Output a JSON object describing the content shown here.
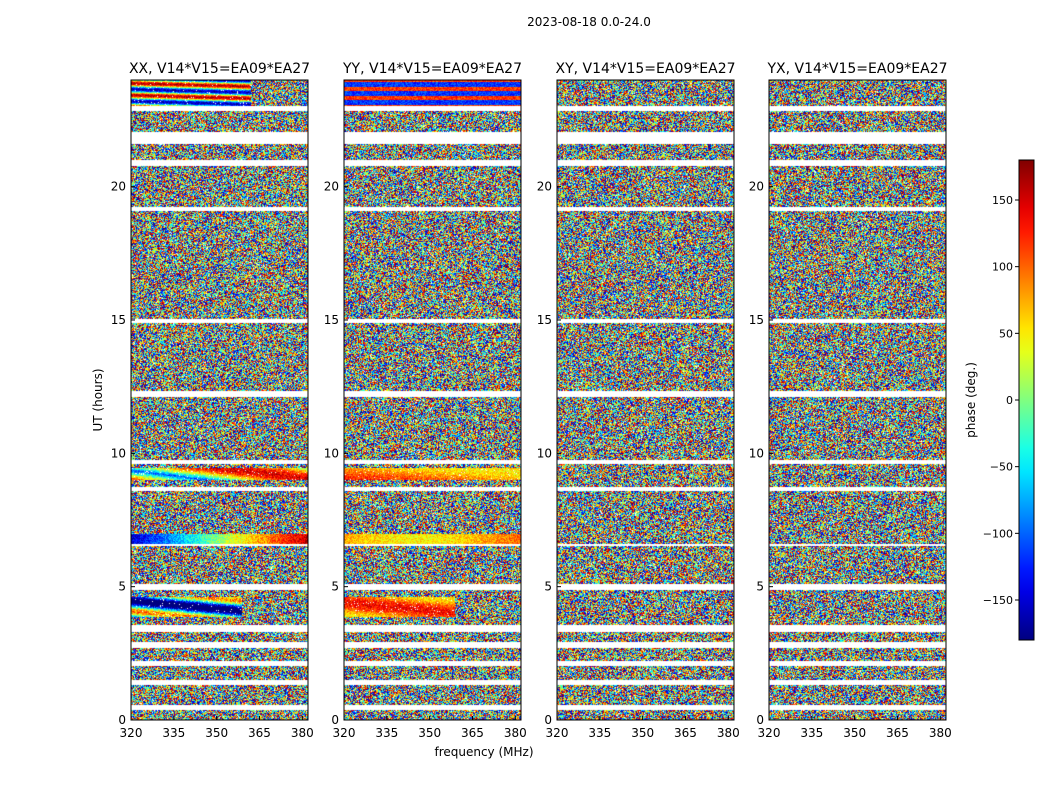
{
  "figure": {
    "title": "2023-08-18 0.0-24.0"
  },
  "chart_data": {
    "type": "heatmap",
    "title": "2023-08-18 0.0-24.0",
    "xlabel": "frequency (MHz)",
    "ylabel": "UT (hours)",
    "xlim": [
      320,
      382
    ],
    "ylim": [
      0,
      24
    ],
    "xticks": [
      320,
      335,
      350,
      365,
      380
    ],
    "yticks": [
      0,
      5,
      10,
      15,
      20
    ],
    "panels": [
      {
        "title": "XX, V14*V15=EA09*EA27",
        "pol": "XX",
        "show_xlabel": false,
        "show_ylabel": true
      },
      {
        "title": "YY, V14*V15=EA09*EA27",
        "pol": "YY",
        "show_xlabel": true,
        "show_ylabel": false
      },
      {
        "title": "XY, V14*V15=EA09*EA27",
        "pol": "XY",
        "show_xlabel": false,
        "show_ylabel": false
      },
      {
        "title": "YX, V14*V15=EA09*EA27",
        "pol": "YX",
        "show_xlabel": false,
        "show_ylabel": false
      }
    ],
    "colorbar": {
      "label": "phase (deg.)",
      "range": [
        -180,
        180
      ],
      "ticks": [
        -150,
        -100,
        -50,
        0,
        50,
        100,
        150
      ],
      "colormap": "jet"
    },
    "flagged_time_bands_hours": [
      [
        0.35,
        0.55
      ],
      [
        1.3,
        1.5
      ],
      [
        2.0,
        2.2
      ],
      [
        2.7,
        2.9
      ],
      [
        3.3,
        3.55
      ],
      [
        4.85,
        5.1
      ],
      [
        6.5,
        6.6
      ],
      [
        8.6,
        8.75
      ],
      [
        9.6,
        9.75
      ],
      [
        12.1,
        12.35
      ],
      [
        14.9,
        15.05
      ],
      [
        19.1,
        19.25
      ],
      [
        20.8,
        21.0
      ],
      [
        21.6,
        22.05
      ],
      [
        22.85,
        23.05
      ]
    ],
    "coherent_segments": [
      {
        "pol": "XX",
        "ut_range": [
          22.9,
          24.0
        ],
        "freq_range": [
          320,
          362
        ],
        "phase_pattern": "red-to-cyan-banded"
      },
      {
        "pol": "XX",
        "ut_range": [
          6.55,
          6.95
        ],
        "freq_range": [
          320,
          382
        ],
        "phase_pattern": "blue-to-red gradient"
      },
      {
        "pol": "XX",
        "ut_range": [
          3.85,
          4.6
        ],
        "freq_range": [
          320,
          359
        ],
        "phase_pattern": "mixed blue/green"
      },
      {
        "pol": "XX",
        "ut_range": [
          9.0,
          9.45
        ],
        "freq_range": [
          320,
          382
        ],
        "phase_pattern": "mixed blue/red"
      },
      {
        "pol": "YY",
        "ut_range": [
          22.9,
          24.0
        ],
        "freq_range": [
          320,
          382
        ],
        "phase_pattern": "red/blue banded"
      },
      {
        "pol": "YY",
        "ut_range": [
          6.5,
          6.95
        ],
        "freq_range": [
          320,
          382
        ],
        "phase_pattern": "orange/red"
      },
      {
        "pol": "YY",
        "ut_range": [
          3.85,
          4.6
        ],
        "freq_range": [
          320,
          359
        ],
        "phase_pattern": "red/orange"
      },
      {
        "pol": "YY",
        "ut_range": [
          9.0,
          9.45
        ],
        "freq_range": [
          320,
          382
        ],
        "phase_pattern": "orange/red"
      }
    ]
  }
}
